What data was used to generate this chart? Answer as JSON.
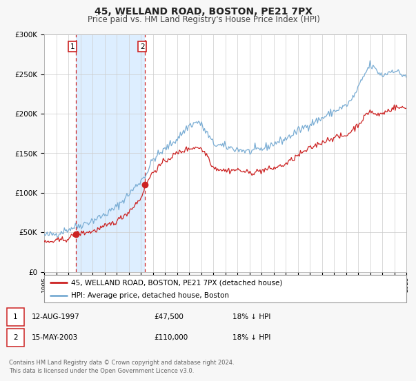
{
  "title": "45, WELLAND ROAD, BOSTON, PE21 7PX",
  "subtitle": "Price paid vs. HM Land Registry's House Price Index (HPI)",
  "bg_color": "#f7f7f7",
  "plot_bg_color": "#ffffff",
  "grid_color": "#cccccc",
  "hpi_color": "#7aadd4",
  "price_color": "#cc2222",
  "span_color": "#ddeeff",
  "sale1_date_x": 1997.614,
  "sale1_price": 47500,
  "sale2_date_x": 2003.37,
  "sale2_price": 110000,
  "sale1_label": "1",
  "sale2_label": "2",
  "legend_entry1": "45, WELLAND ROAD, BOSTON, PE21 7PX (detached house)",
  "legend_entry2": "HPI: Average price, detached house, Boston",
  "table_row1": [
    "1",
    "12-AUG-1997",
    "£47,500",
    "18% ↓ HPI"
  ],
  "table_row2": [
    "2",
    "15-MAY-2003",
    "£110,000",
    "18% ↓ HPI"
  ],
  "footer1": "Contains HM Land Registry data © Crown copyright and database right 2024.",
  "footer2": "This data is licensed under the Open Government Licence v3.0.",
  "xmin": 1995,
  "xmax": 2025,
  "ymin": 0,
  "ymax": 300000,
  "yticks": [
    0,
    50000,
    100000,
    150000,
    200000,
    250000,
    300000
  ]
}
